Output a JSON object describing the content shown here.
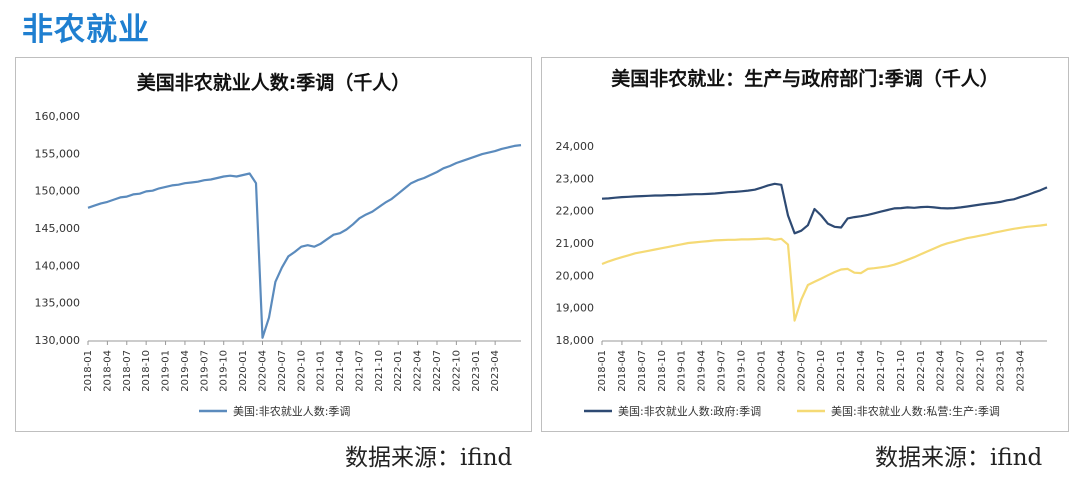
{
  "page_title": "非农就业",
  "source_left": "数据来源：ifind",
  "source_right": "数据来源：ifind",
  "chart_data": [
    {
      "type": "line",
      "title": "美国非农就业人数:季调（千人）",
      "xlabel": "",
      "ylabel": "",
      "ylim": [
        130000,
        160000
      ],
      "yticks": [
        130000,
        135000,
        140000,
        145000,
        150000,
        155000,
        160000
      ],
      "ytick_labels": [
        "130,000",
        "135,000",
        "140,000",
        "145,000",
        "150,000",
        "155,000",
        "160,000"
      ],
      "x_tick_labels": [
        "2018-01",
        "2018-04",
        "2018-07",
        "2018-10",
        "2019-01",
        "2019-04",
        "2019-07",
        "2019-10",
        "2020-01",
        "2020-04",
        "2020-07",
        "2020-10",
        "2021-01",
        "2021-04",
        "2021-07",
        "2021-10",
        "2022-01",
        "2022-04",
        "2022-07",
        "2022-10",
        "2023-01",
        "2023-04"
      ],
      "grid": false,
      "legend_position": "bottom",
      "x_start": "2018-01",
      "series": [
        {
          "name": "美国:非农就业人数:季调",
          "color": "#5b8bbd",
          "values": [
            147700,
            148000,
            148300,
            148500,
            148800,
            149100,
            149200,
            149500,
            149600,
            149900,
            150000,
            150300,
            150500,
            150700,
            150800,
            151000,
            151100,
            151200,
            151400,
            151500,
            151700,
            151900,
            152000,
            151900,
            152100,
            152300,
            151000,
            130300,
            133000,
            137800,
            139700,
            141200,
            141800,
            142500,
            142700,
            142500,
            142900,
            143500,
            144100,
            144300,
            144800,
            145500,
            146300,
            146800,
            147200,
            147800,
            148400,
            148900,
            149600,
            150300,
            151000,
            151400,
            151700,
            152100,
            152500,
            153000,
            153300,
            153700,
            154000,
            154300,
            154600,
            154900,
            155100,
            155300,
            155600,
            155800,
            156000,
            156100
          ]
        }
      ]
    },
    {
      "type": "line",
      "title": "美国非农就业：生产与政府部门:季调（千人）",
      "xlabel": "",
      "ylabel": "",
      "ylim": [
        18000,
        24000
      ],
      "yticks": [
        18000,
        19000,
        20000,
        21000,
        22000,
        23000,
        24000
      ],
      "ytick_labels": [
        "18,000",
        "19,000",
        "20,000",
        "21,000",
        "22,000",
        "23,000",
        "24,000"
      ],
      "x_tick_labels": [
        "2018-01",
        "2018-04",
        "2018-07",
        "2018-10",
        "2019-01",
        "2019-04",
        "2019-07",
        "2019-10",
        "2020-01",
        "2020-04",
        "2020-07",
        "2020-10",
        "2021-01",
        "2021-04",
        "2021-07",
        "2021-10",
        "2022-01",
        "2022-04",
        "2022-07",
        "2022-10",
        "2023-01",
        "2023-04"
      ],
      "grid": false,
      "legend_position": "bottom",
      "x_start": "2018-01",
      "series": [
        {
          "name": "美国:非农就业人数:政府:季调",
          "color": "#2e4a73",
          "values": [
            22370,
            22380,
            22400,
            22420,
            22430,
            22440,
            22450,
            22460,
            22470,
            22470,
            22480,
            22480,
            22490,
            22500,
            22510,
            22510,
            22520,
            22530,
            22550,
            22570,
            22580,
            22600,
            22620,
            22650,
            22710,
            22780,
            22830,
            22800,
            21850,
            21300,
            21380,
            21550,
            22050,
            21850,
            21600,
            21500,
            21480,
            21760,
            21800,
            21830,
            21870,
            21920,
            21970,
            22020,
            22070,
            22080,
            22100,
            22090,
            22110,
            22120,
            22100,
            22080,
            22070,
            22080,
            22100,
            22130,
            22160,
            22190,
            22220,
            22240,
            22270,
            22320,
            22350,
            22420,
            22480,
            22560,
            22630,
            22720
          ]
        },
        {
          "name": "美国:非农就业人数:私营:生产:季调",
          "color": "#f5da75",
          "values": [
            20350,
            20430,
            20500,
            20560,
            20620,
            20680,
            20720,
            20760,
            20800,
            20840,
            20880,
            20920,
            20960,
            21000,
            21020,
            21040,
            21060,
            21080,
            21090,
            21100,
            21100,
            21110,
            21110,
            21120,
            21130,
            21140,
            21100,
            21130,
            20950,
            18600,
            19250,
            19700,
            19800,
            19900,
            20000,
            20100,
            20180,
            20200,
            20080,
            20070,
            20200,
            20220,
            20250,
            20280,
            20330,
            20400,
            20480,
            20560,
            20650,
            20740,
            20830,
            20920,
            20990,
            21040,
            21100,
            21150,
            21190,
            21230,
            21270,
            21320,
            21360,
            21400,
            21440,
            21470,
            21500,
            21520,
            21540,
            21570
          ]
        }
      ]
    }
  ]
}
